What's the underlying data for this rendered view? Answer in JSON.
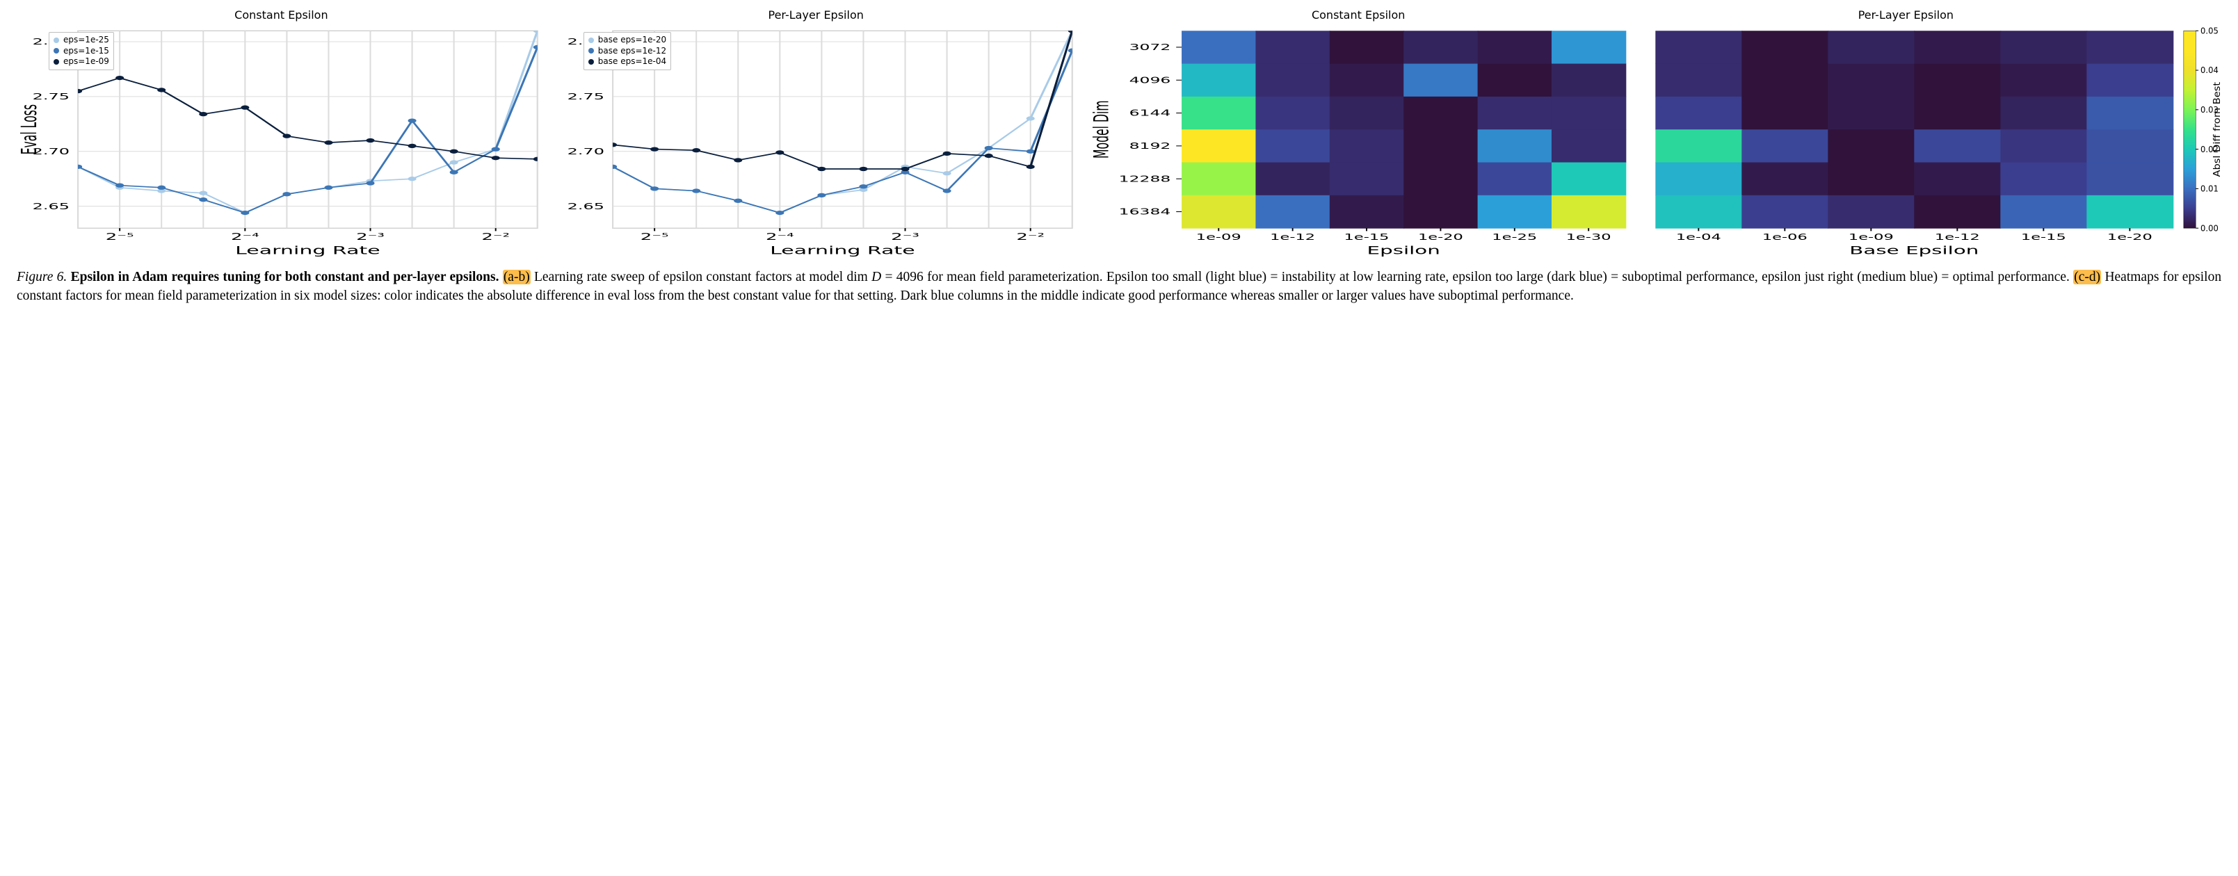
{
  "figure": {
    "panels": {
      "lineA": {
        "title": "Constant Epsilon",
        "ylabel": "Eval Loss",
        "xlabel": "Learning Rate",
        "ylim": [
          2.63,
          2.81
        ],
        "yticks": [
          2.65,
          2.7,
          2.75,
          2.8
        ],
        "xticks_labels": [
          "2⁻⁵",
          "2⁻⁴",
          "2⁻³",
          "2⁻²"
        ],
        "xticks_minor_count": 11,
        "x_major_positions": [
          1,
          4,
          7,
          10
        ],
        "grid_color": "#dcdcdc",
        "border_color": "#bfbfbf",
        "legend_items": [
          {
            "label": "eps=1e-25",
            "color": "#a8cbe8"
          },
          {
            "label": "eps=1e-15",
            "color": "#3c76b5"
          },
          {
            "label": "eps=1e-09",
            "color": "#0a1f3d"
          }
        ],
        "series": [
          {
            "color": "#a8cbe8",
            "y": [
              2.686,
              2.667,
              2.664,
              2.662,
              2.644,
              2.661,
              2.667,
              2.673,
              2.675,
              2.69,
              2.702,
              2.81
            ]
          },
          {
            "color": "#3c76b5",
            "y": [
              2.686,
              2.669,
              2.667,
              2.656,
              2.644,
              2.661,
              2.667,
              2.671,
              2.728,
              2.681,
              2.702,
              2.795
            ]
          },
          {
            "color": "#0a1f3d",
            "y": [
              2.755,
              2.767,
              2.756,
              2.734,
              2.74,
              2.714,
              2.708,
              2.71,
              2.705,
              2.7,
              2.694,
              2.693
            ]
          }
        ]
      },
      "lineB": {
        "title": "Per-Layer Epsilon",
        "ylabel": "",
        "xlabel": "Learning Rate",
        "ylim": [
          2.63,
          2.81
        ],
        "yticks": [
          2.65,
          2.7,
          2.75,
          2.8
        ],
        "xticks_labels": [
          "2⁻⁵",
          "2⁻⁴",
          "2⁻³",
          "2⁻²"
        ],
        "xticks_minor_count": 11,
        "x_major_positions": [
          1,
          4,
          7,
          10
        ],
        "grid_color": "#dcdcdc",
        "border_color": "#bfbfbf",
        "legend_items": [
          {
            "label": "base eps=1e-20",
            "color": "#a8cbe8"
          },
          {
            "label": "base eps=1e-12",
            "color": "#3c76b5"
          },
          {
            "label": "base eps=1e-04",
            "color": "#0a1f3d"
          }
        ],
        "series": [
          {
            "color": "#a8cbe8",
            "y": [
              2.686,
              2.666,
              2.664,
              2.655,
              2.644,
              2.66,
              2.665,
              2.686,
              2.68,
              2.703,
              2.73,
              2.81
            ]
          },
          {
            "color": "#3c76b5",
            "y": [
              2.686,
              2.666,
              2.664,
              2.655,
              2.644,
              2.66,
              2.668,
              2.681,
              2.664,
              2.703,
              2.7,
              2.792
            ]
          },
          {
            "color": "#0a1f3d",
            "y": [
              2.706,
              2.702,
              2.701,
              2.692,
              2.699,
              2.684,
              2.684,
              2.684,
              2.698,
              2.696,
              2.686,
              2.81
            ]
          }
        ]
      },
      "heatC": {
        "title": "Constant Epsilon",
        "ylabel": "Model Dim",
        "xlabel": "Epsilon",
        "yticks": [
          "3072",
          "4096",
          "6144",
          "8192",
          "12288",
          "16384"
        ],
        "xticks": [
          "1e-09",
          "1e-12",
          "1e-15",
          "1e-20",
          "1e-25",
          "1e-30"
        ],
        "values": [
          [
            0.01,
            0.003,
            0.0,
            0.002,
            0.001,
            0.014
          ],
          [
            0.018,
            0.003,
            0.001,
            0.011,
            0.0,
            0.002
          ],
          [
            0.025,
            0.004,
            0.002,
            0.0,
            0.003,
            0.003
          ],
          [
            0.05,
            0.006,
            0.003,
            0.0,
            0.013,
            0.003
          ],
          [
            0.032,
            0.002,
            0.003,
            0.0,
            0.006,
            0.02
          ],
          [
            0.038,
            0.01,
            0.001,
            0.0,
            0.015,
            0.037
          ]
        ]
      },
      "heatD": {
        "title": "Per-Layer Epsilon",
        "ylabel": "",
        "xlabel": "Base Epsilon",
        "yticks": [
          "3072",
          "4096",
          "6144",
          "8192",
          "12288",
          "16384"
        ],
        "xticks": [
          "1e-04",
          "1e-06",
          "1e-09",
          "1e-12",
          "1e-15",
          "1e-20"
        ],
        "values": [
          [
            0.003,
            0.0,
            0.002,
            0.001,
            0.002,
            0.003
          ],
          [
            0.003,
            0.0,
            0.001,
            0.0,
            0.001,
            0.005
          ],
          [
            0.005,
            0.0,
            0.001,
            0.0,
            0.002,
            0.008
          ],
          [
            0.023,
            0.006,
            0.0,
            0.006,
            0.004,
            0.007
          ],
          [
            0.017,
            0.001,
            0.0,
            0.001,
            0.005,
            0.007
          ],
          [
            0.019,
            0.005,
            0.003,
            0.0,
            0.009,
            0.02
          ]
        ]
      },
      "colorbar": {
        "label": "Absl Diff from Best",
        "ticks": [
          "0.05",
          "0.04",
          "0.03",
          "0.02",
          "0.01",
          "0.00"
        ],
        "vmin": 0.0,
        "vmax": 0.05,
        "stops": [
          {
            "t": 0.0,
            "c": "#30123b"
          },
          {
            "t": 0.1,
            "c": "#3b3e8f"
          },
          {
            "t": 0.2,
            "c": "#3a6fc0"
          },
          {
            "t": 0.3,
            "c": "#2ba0d8"
          },
          {
            "t": 0.4,
            "c": "#1ec9b7"
          },
          {
            "t": 0.5,
            "c": "#36e189"
          },
          {
            "t": 0.6,
            "c": "#7cf357"
          },
          {
            "t": 0.7,
            "c": "#c2f234"
          },
          {
            "t": 0.8,
            "c": "#f0e02c"
          },
          {
            "t": 0.9,
            "c": "#fde725"
          },
          {
            "t": 1.0,
            "c": "#fde725"
          }
        ]
      }
    },
    "caption": {
      "fignum": "Figure 6.",
      "bold": "Epsilon in Adam requires tuning for both constant and per-layer epsilons.",
      "hl_ab": "(a-b)",
      "text_ab": " Learning rate sweep of epsilon constant factors at model dim ",
      "D_eq": "D = 4096",
      "text_ab2": " for mean field parameterization. Epsilon too small (light blue) = instability at low learning rate, epsilon too large (dark blue) = suboptimal performance, epsilon just right (medium blue) = optimal performance. ",
      "hl_cd": "(c-d)",
      "text_cd": " Heatmaps for epsilon constant factors for mean field parameterization in six model sizes: color indicates the absolute difference in eval loss from the best constant value for that setting. Dark blue columns in the middle indicate good performance whereas smaller or larger values have suboptimal performance."
    }
  }
}
